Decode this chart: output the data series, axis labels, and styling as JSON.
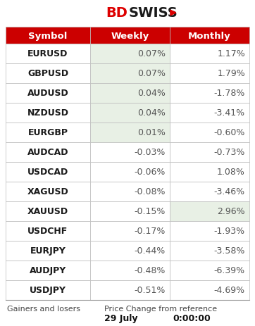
{
  "header": [
    "Symbol",
    "Weekly",
    "Monthly"
  ],
  "rows": [
    {
      "symbol": "EURUSD",
      "weekly": "0.07%",
      "monthly": "1.17%",
      "weekly_green": true,
      "monthly_green": false
    },
    {
      "symbol": "GBPUSD",
      "weekly": "0.07%",
      "monthly": "1.79%",
      "weekly_green": true,
      "monthly_green": false
    },
    {
      "symbol": "AUDUSD",
      "weekly": "0.04%",
      "monthly": "-1.78%",
      "weekly_green": true,
      "monthly_green": false
    },
    {
      "symbol": "NZDUSD",
      "weekly": "0.04%",
      "monthly": "-3.41%",
      "weekly_green": true,
      "monthly_green": false
    },
    {
      "symbol": "EURGBP",
      "weekly": "0.01%",
      "monthly": "-0.60%",
      "weekly_green": true,
      "monthly_green": false
    },
    {
      "symbol": "AUDCAD",
      "weekly": "-0.03%",
      "monthly": "-0.73%",
      "weekly_green": false,
      "monthly_green": false
    },
    {
      "symbol": "USDCAD",
      "weekly": "-0.06%",
      "monthly": "1.08%",
      "weekly_green": false,
      "monthly_green": false
    },
    {
      "symbol": "XAGUSD",
      "weekly": "-0.08%",
      "monthly": "-3.46%",
      "weekly_green": false,
      "monthly_green": false
    },
    {
      "symbol": "XAUUSD",
      "weekly": "-0.15%",
      "monthly": "2.96%",
      "weekly_green": false,
      "monthly_green": true
    },
    {
      "symbol": "USDCHF",
      "weekly": "-0.17%",
      "monthly": "-1.93%",
      "weekly_green": false,
      "monthly_green": false
    },
    {
      "symbol": "EURJPY",
      "weekly": "-0.44%",
      "monthly": "-3.58%",
      "weekly_green": false,
      "monthly_green": false
    },
    {
      "symbol": "AUDJPY",
      "weekly": "-0.48%",
      "monthly": "-6.39%",
      "weekly_green": false,
      "monthly_green": false
    },
    {
      "symbol": "USDJPY",
      "weekly": "-0.51%",
      "monthly": "-4.69%",
      "weekly_green": false,
      "monthly_green": false
    }
  ],
  "footer_left": "Gainers and losers",
  "footer_center": "Price Change from reference",
  "footer_date": "29 July",
  "footer_time": "0:00:00",
  "header_bg": "#cc0000",
  "header_text_color": "#ffffff",
  "symbol_bg": "#ffffff",
  "symbol_text_color": "#1a1a1a",
  "value_green_bg": "#e8f0e5",
  "value_white_bg": "#ffffff",
  "border_color": "#bbbbbb",
  "fig_bg": "#ffffff",
  "logo_bd_color": "#dd0000",
  "logo_swiss_color": "#1a1a1a",
  "arrow_color": "#dd0000"
}
